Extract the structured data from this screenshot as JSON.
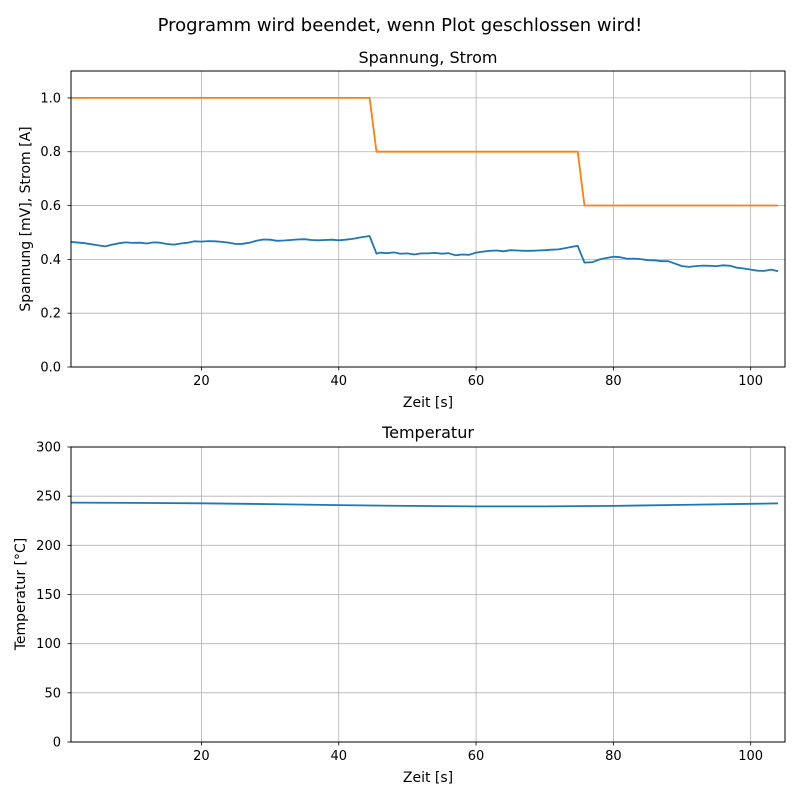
{
  "suptitle": "Programm wird beendet, wenn Plot geschlossen wird!",
  "chart_data": [
    {
      "type": "line",
      "title": "Spannung, Strom",
      "xlabel": "Zeit [s]",
      "ylabel": "Spannung [mV], Strom [A]",
      "xlim": [
        1,
        105
      ],
      "ylim": [
        0,
        1.1
      ],
      "xticks": [
        20,
        40,
        60,
        80,
        100
      ],
      "yticks": [
        0.0,
        0.2,
        0.4,
        0.6,
        0.8,
        1.0
      ],
      "xtick_labels": [
        "20",
        "40",
        "60",
        "80",
        "100"
      ],
      "ytick_labels": [
        "0.0",
        "0.2",
        "0.4",
        "0.6",
        "0.8",
        "1.0"
      ],
      "grid": true,
      "series": [
        {
          "color": "#1f77b4",
          "x": [
            1,
            3,
            5,
            6,
            7,
            8,
            9,
            10,
            11,
            12,
            13,
            14,
            15,
            16,
            17,
            18,
            19,
            20,
            21,
            22,
            23,
            24,
            25,
            26,
            27,
            28,
            29,
            30,
            31,
            32,
            33,
            34,
            35,
            36,
            37,
            38,
            39,
            40,
            41,
            42,
            43,
            44,
            44.5,
            45.5,
            46,
            47,
            48,
            49,
            50,
            51,
            52,
            53,
            54,
            55,
            56,
            57,
            58,
            59,
            60,
            61,
            62,
            63,
            64,
            65,
            66,
            67,
            68,
            69,
            70,
            71,
            72,
            73,
            74,
            74.8,
            75.8,
            77,
            78,
            79,
            80,
            81,
            82,
            83,
            84,
            85,
            86,
            87,
            88,
            89,
            90,
            91,
            92,
            93,
            94,
            95,
            96,
            97,
            98,
            99,
            100,
            101,
            102,
            103,
            104
          ],
          "values": [
            0.465,
            0.46,
            0.452,
            0.448,
            0.455,
            0.46,
            0.463,
            0.461,
            0.462,
            0.459,
            0.463,
            0.462,
            0.457,
            0.455,
            0.459,
            0.462,
            0.467,
            0.466,
            0.468,
            0.467,
            0.465,
            0.462,
            0.457,
            0.458,
            0.462,
            0.469,
            0.474,
            0.473,
            0.469,
            0.47,
            0.472,
            0.474,
            0.475,
            0.472,
            0.471,
            0.472,
            0.473,
            0.471,
            0.473,
            0.476,
            0.481,
            0.485,
            0.487,
            0.421,
            0.425,
            0.423,
            0.426,
            0.421,
            0.422,
            0.418,
            0.422,
            0.422,
            0.424,
            0.421,
            0.423,
            0.415,
            0.418,
            0.417,
            0.425,
            0.429,
            0.432,
            0.433,
            0.43,
            0.434,
            0.433,
            0.432,
            0.432,
            0.433,
            0.434,
            0.436,
            0.437,
            0.442,
            0.447,
            0.45,
            0.388,
            0.39,
            0.4,
            0.405,
            0.41,
            0.408,
            0.402,
            0.403,
            0.401,
            0.397,
            0.396,
            0.393,
            0.393,
            0.384,
            0.375,
            0.372,
            0.375,
            0.377,
            0.376,
            0.375,
            0.378,
            0.376,
            0.369,
            0.366,
            0.362,
            0.358,
            0.357,
            0.362,
            0.356
          ]
        },
        {
          "color": "#ff7f0e",
          "x": [
            1,
            44.5,
            45.5,
            74.8,
            75.8,
            104
          ],
          "values": [
            1.0,
            1.0,
            0.8,
            0.8,
            0.6,
            0.6
          ]
        }
      ]
    },
    {
      "type": "line",
      "title": "Temperatur",
      "xlabel": "Zeit [s]",
      "ylabel": "Temperatur [°C]",
      "xlim": [
        1,
        105
      ],
      "ylim": [
        0,
        300
      ],
      "xticks": [
        20,
        40,
        60,
        80,
        100
      ],
      "yticks": [
        0,
        50,
        100,
        150,
        200,
        250,
        300
      ],
      "xtick_labels": [
        "20",
        "40",
        "60",
        "80",
        "100"
      ],
      "ytick_labels": [
        "0",
        "50",
        "100",
        "150",
        "200",
        "250",
        "300"
      ],
      "grid": true,
      "series": [
        {
          "color": "#1f77b4",
          "x": [
            1,
            10,
            20,
            30,
            40,
            50,
            60,
            70,
            80,
            90,
            100,
            104
          ],
          "values": [
            243.5,
            243.2,
            242.7,
            241.9,
            240.9,
            240.1,
            239.6,
            239.6,
            240.1,
            241.1,
            242.2,
            242.6
          ]
        }
      ]
    }
  ]
}
